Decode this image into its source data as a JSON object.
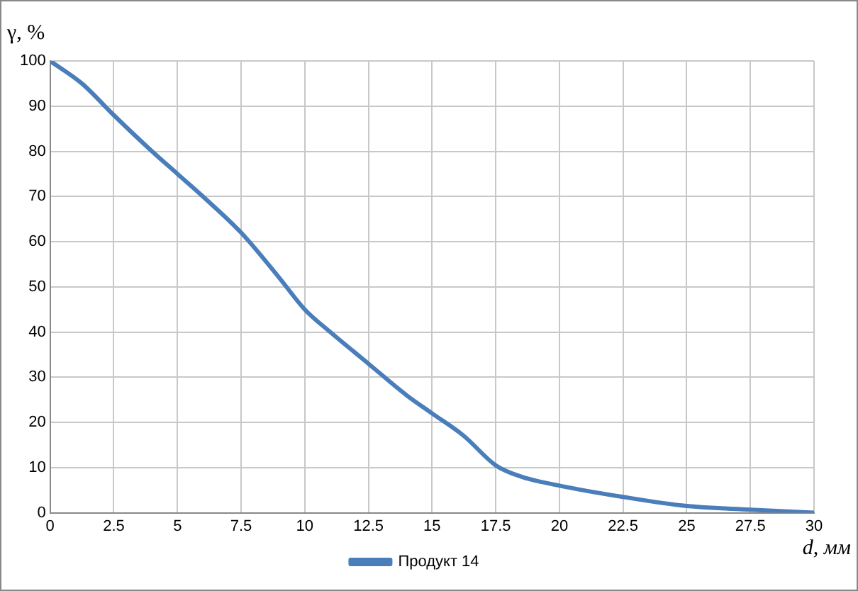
{
  "chart_data": {
    "type": "line",
    "xlabel": "d, мм",
    "ylabel": "γ, %",
    "x": [
      0,
      1.25,
      2.5,
      4,
      5,
      6,
      7.5,
      9,
      10,
      11,
      12.5,
      14,
      15,
      16.25,
      17.5,
      18.5,
      20,
      22.5,
      25,
      27.5,
      30
    ],
    "series": [
      {
        "name": "Продукт 14",
        "color": "#4a7ebb",
        "values": [
          100,
          95,
          88,
          80,
          75,
          70,
          62,
          52,
          45,
          40,
          33,
          26,
          22,
          17,
          10.5,
          8,
          6,
          3.5,
          1.5,
          0.7,
          0
        ]
      }
    ],
    "xlim": [
      0,
      30
    ],
    "xticks": [
      0,
      2.5,
      5,
      7.5,
      10,
      12.5,
      15,
      17.5,
      20,
      22.5,
      25,
      27.5,
      30
    ],
    "ylim": [
      0,
      100
    ],
    "yticks": [
      0,
      10,
      20,
      30,
      40,
      50,
      60,
      70,
      80,
      90,
      100
    ],
    "grid": true,
    "legend": "bottom",
    "marker": "none",
    "line_style": "solid"
  }
}
